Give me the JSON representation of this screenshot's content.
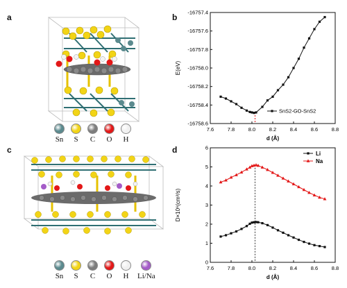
{
  "panels": {
    "a": {
      "label": "a"
    },
    "b": {
      "label": "b"
    },
    "c": {
      "label": "c"
    },
    "d": {
      "label": "d"
    }
  },
  "legend_a": [
    {
      "label": "Sn",
      "color": "#5b8a8e"
    },
    {
      "label": "S",
      "color": "#f2d416"
    },
    {
      "label": "C",
      "color": "#7d7d7d"
    },
    {
      "label": "O",
      "color": "#e31818"
    },
    {
      "label": "H",
      "color": "#f0f0f0"
    }
  ],
  "legend_c": [
    {
      "label": "Sn",
      "color": "#5b8a8e"
    },
    {
      "label": "S",
      "color": "#f2d416"
    },
    {
      "label": "C",
      "color": "#7d7d7d"
    },
    {
      "label": "O",
      "color": "#e31818"
    },
    {
      "label": "H",
      "color": "#f0f0f0"
    },
    {
      "label": "Li/Na",
      "color": "#a45cc8"
    }
  ],
  "chart_data": [
    {
      "type": "line",
      "xlabel": "d (Å)",
      "ylabel": "E(eV)",
      "xlim": [
        7.6,
        8.8
      ],
      "ylim": [
        -16758.6,
        -16757.4
      ],
      "xticks": [
        "7.6",
        "7.8",
        "8.0",
        "8.2",
        "8.4",
        "8.6",
        "8.8"
      ],
      "yticks": [
        "-16757.4",
        "-16757.6",
        "-16757.8",
        "-16758.0",
        "-16758.2",
        "-16758.4",
        "-16758.6"
      ],
      "series": [
        {
          "name": "SnS2-GO-SnS2",
          "color": "#111111",
          "x": [
            7.7,
            7.75,
            7.8,
            7.85,
            7.9,
            7.95,
            7.98,
            8.0,
            8.02,
            8.04,
            8.1,
            8.15,
            8.2,
            8.25,
            8.3,
            8.35,
            8.4,
            8.45,
            8.5,
            8.55,
            8.6,
            8.65,
            8.7
          ],
          "y": [
            -16758.31,
            -16758.33,
            -16758.36,
            -16758.39,
            -16758.43,
            -16758.46,
            -16758.475,
            -16758.48,
            -16758.485,
            -16758.48,
            -16758.42,
            -16758.35,
            -16758.31,
            -16758.24,
            -16758.18,
            -16758.1,
            -16758.0,
            -16757.9,
            -16757.78,
            -16757.68,
            -16757.58,
            -16757.5,
            -16757.45
          ]
        }
      ],
      "marker_line_x": 8.03,
      "legend": "bottom-right"
    },
    {
      "type": "line",
      "xlabel": "d (Å)",
      "ylabel": "D×10⁶(cm²/s)",
      "xlim": [
        7.6,
        8.8
      ],
      "ylim": [
        0,
        6
      ],
      "xticks": [
        "7.6",
        "7.8",
        "8.0",
        "8.2",
        "8.4",
        "8.6",
        "8.8"
      ],
      "yticks": [
        "0",
        "1",
        "2",
        "3",
        "4",
        "5",
        "6"
      ],
      "series": [
        {
          "name": "Li",
          "color": "#111111",
          "x": [
            7.7,
            7.75,
            7.8,
            7.85,
            7.9,
            7.95,
            7.98,
            8.0,
            8.02,
            8.04,
            8.06,
            8.1,
            8.15,
            8.2,
            8.25,
            8.3,
            8.35,
            8.4,
            8.45,
            8.5,
            8.55,
            8.6,
            8.65,
            8.7
          ],
          "y": [
            1.35,
            1.42,
            1.52,
            1.62,
            1.75,
            1.9,
            2.02,
            2.08,
            2.1,
            2.11,
            2.1,
            2.05,
            1.95,
            1.82,
            1.68,
            1.55,
            1.42,
            1.3,
            1.18,
            1.07,
            0.98,
            0.9,
            0.85,
            0.8
          ]
        },
        {
          "name": "Na",
          "color": "#e31818",
          "x": [
            7.7,
            7.75,
            7.8,
            7.85,
            7.9,
            7.95,
            7.98,
            8.0,
            8.02,
            8.04,
            8.06,
            8.1,
            8.15,
            8.2,
            8.25,
            8.3,
            8.35,
            8.4,
            8.45,
            8.5,
            8.55,
            8.6,
            8.65,
            8.7
          ],
          "y": [
            4.2,
            4.3,
            4.45,
            4.58,
            4.72,
            4.88,
            4.98,
            5.05,
            5.08,
            5.1,
            5.07,
            4.98,
            4.85,
            4.7,
            4.55,
            4.4,
            4.25,
            4.1,
            3.95,
            3.8,
            3.65,
            3.52,
            3.4,
            3.32
          ]
        }
      ],
      "marker_line_x": 8.03,
      "legend": "top-right"
    }
  ]
}
